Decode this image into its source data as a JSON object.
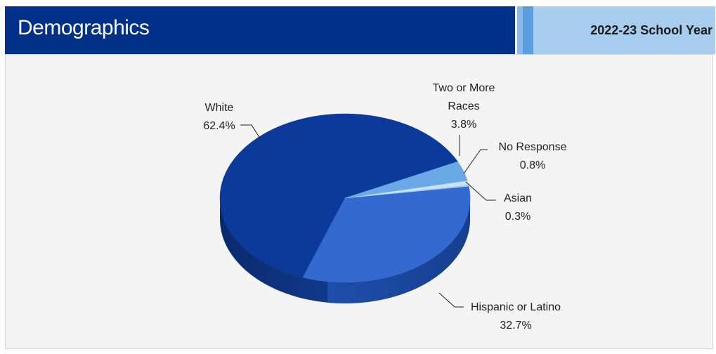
{
  "header": {
    "title": "Demographics",
    "school_year": "2022-23 School Year"
  },
  "colors": {
    "header_bg": "#003087",
    "year_box_bg": "#a9cdee",
    "panel_bg": "#f4f4f4"
  },
  "chart_data": {
    "type": "pie",
    "title": "",
    "slices": [
      {
        "label": "White",
        "value": 62.4,
        "display": "62.4%",
        "color": "#0b3a9b"
      },
      {
        "label": "Hispanic or Latino",
        "value": 32.7,
        "display": "32.7%",
        "color": "#3469cf"
      },
      {
        "label": "Asian",
        "value": 0.3,
        "display": "0.3%",
        "color": "#9fcaf0"
      },
      {
        "label": "No Response",
        "value": 0.8,
        "display": "0.8%",
        "color": "#c8e1f7"
      },
      {
        "label": "Two or More Races",
        "value": 3.8,
        "display": "3.8%",
        "color": "#6aa8e6"
      }
    ]
  }
}
